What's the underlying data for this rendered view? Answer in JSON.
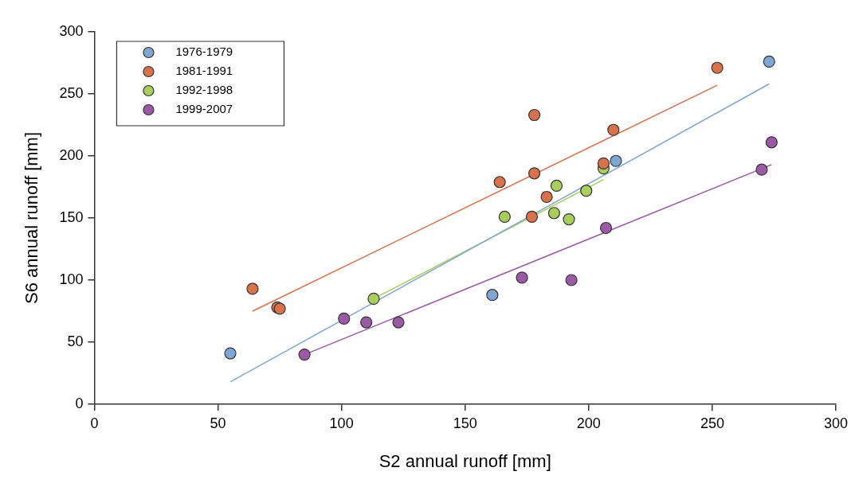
{
  "chart_data": {
    "type": "scatter",
    "xlabel": "S2 annual runoff [mm]",
    "ylabel": "S6 annual runoff [mm]",
    "xlim": [
      0,
      300
    ],
    "xticks": [
      0,
      50,
      100,
      150,
      200,
      250,
      300
    ],
    "ylim": [
      0,
      300
    ],
    "yticks": [
      0,
      50,
      100,
      150,
      200,
      250,
      300
    ],
    "grid": false,
    "legend": "top left",
    "marker": "circle",
    "series": [
      {
        "name": "1976-1979",
        "color": "#7fa7d4",
        "x": [
          55,
          161,
          211,
          273
        ],
        "values": [
          41,
          88,
          196,
          276
        ]
      },
      {
        "name": "1981-1991",
        "color": "#d9714a",
        "x": [
          64,
          74,
          75,
          164,
          177,
          178,
          178,
          183,
          206,
          210,
          252
        ],
        "values": [
          93,
          78,
          77,
          179,
          151,
          233,
          186,
          167,
          194,
          221,
          271
        ]
      },
      {
        "name": "1992-1998",
        "color": "#a9cf5a",
        "x": [
          113,
          166,
          186,
          187,
          192,
          199,
          206
        ],
        "values": [
          85,
          151,
          154,
          176,
          149,
          172,
          190
        ]
      },
      {
        "name": "1999-2007",
        "color": "#9b59a6",
        "x": [
          85,
          101,
          110,
          123,
          173,
          193,
          207,
          270,
          274
        ],
        "values": [
          40,
          69,
          66,
          66,
          102,
          100,
          142,
          189,
          211
        ]
      },
      {
        "type": "line",
        "marker": "none",
        "color": "#7fa7d4",
        "x": [
          55,
          273
        ],
        "values": [
          18,
          258
        ]
      },
      {
        "type": "line",
        "marker": "none",
        "color": "#d9714a",
        "x": [
          64,
          252
        ],
        "values": [
          75,
          257
        ]
      },
      {
        "type": "line",
        "marker": "none",
        "color": "#a9cf5a",
        "x": [
          113,
          206
        ],
        "values": [
          85,
          181
        ]
      },
      {
        "type": "line",
        "marker": "none",
        "color": "#9b59a6",
        "x": [
          85,
          274
        ],
        "values": [
          40,
          193
        ]
      }
    ]
  }
}
